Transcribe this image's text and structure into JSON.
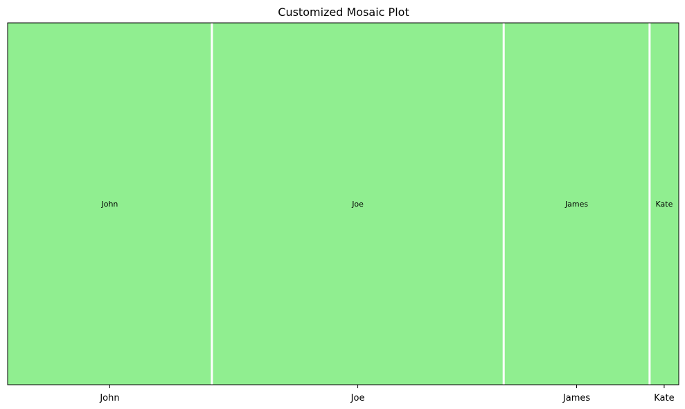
{
  "chart_data": {
    "type": "mosaic",
    "title": "Customized Mosaic Plot",
    "xlabel": "",
    "ylabel": "",
    "categories": [
      "John",
      "Joe",
      "James",
      "Kate"
    ],
    "values": [
      28,
      40,
      20,
      4
    ],
    "segment_labels": [
      "John",
      "Joe",
      "James",
      "Kate"
    ],
    "fill_color": "#90ee90",
    "gap_color": "#ffffff",
    "frame_color": "#000000",
    "y_ticks_shown": false
  }
}
